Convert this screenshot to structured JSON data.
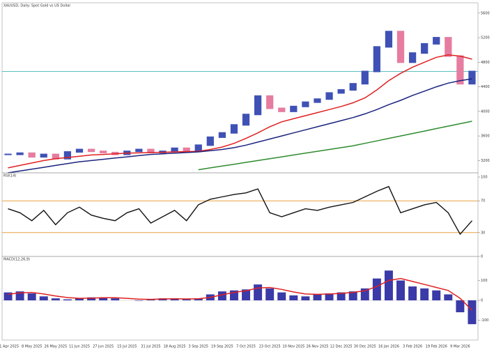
{
  "chart_data": [
    {
      "type": "candlestick",
      "title": "XAUUSD, Daily: Spot Gold vs US Dollar",
      "values": [
        3300,
        3320,
        3260,
        3300,
        3230,
        3340,
        3380,
        3350,
        3330,
        3300,
        3350,
        3380,
        3330,
        3350,
        3400,
        3350,
        3450,
        3580,
        3650,
        3780,
        3950,
        4250,
        4050,
        4000,
        4080,
        4150,
        4200,
        4300,
        4350,
        4450,
        4650,
        5050,
        5300,
        4800,
        4950,
        5100,
        5200,
        4900,
        4450,
        4650
      ],
      "up_color": "#3f51b5",
      "down_color": "#e67ca0",
      "series": [
        {
          "color": "#e02020",
          "values": [
            3080,
            3120,
            3160,
            3200,
            3230,
            3250,
            3270,
            3290,
            3300,
            3310,
            3320,
            3325,
            3330,
            3335,
            3340,
            3345,
            3350,
            3380,
            3420,
            3480,
            3560,
            3650,
            3750,
            3830,
            3880,
            3930,
            3980,
            4030,
            4080,
            4140,
            4220,
            4350,
            4500,
            4620,
            4720,
            4800,
            4880,
            4920,
            4900,
            4850
          ]
        },
        {
          "color": "#1a237e",
          "values": [
            3000,
            3030,
            3060,
            3090,
            3120,
            3150,
            3180,
            3200,
            3220,
            3240,
            3260,
            3280,
            3300,
            3310,
            3320,
            3330,
            3340,
            3360,
            3380,
            3410,
            3450,
            3500,
            3550,
            3600,
            3650,
            3700,
            3750,
            3800,
            3850,
            3900,
            3960,
            4030,
            4110,
            4180,
            4260,
            4330,
            4400,
            4460,
            4500,
            4530
          ]
        },
        {
          "color": "#2e8b2e",
          "values": [
            null,
            null,
            null,
            null,
            null,
            null,
            null,
            null,
            null,
            null,
            null,
            null,
            null,
            null,
            null,
            null,
            3050,
            3080,
            3110,
            3140,
            3170,
            3200,
            3230,
            3260,
            3290,
            3320,
            3350,
            3380,
            3410,
            3440,
            3480,
            3520,
            3560,
            3600,
            3640,
            3680,
            3720,
            3760,
            3800,
            3840
          ]
        }
      ],
      "hlines": [
        {
          "value": 4650,
          "color": "#5bc0c0"
        }
      ],
      "ylim": [
        3000,
        5700
      ],
      "yticks": [
        3200,
        3600,
        4000,
        4400,
        4800,
        5200,
        5600
      ]
    },
    {
      "type": "line",
      "title": "RSI(14)",
      "color": "#111111",
      "values": [
        60,
        55,
        45,
        58,
        40,
        55,
        62,
        52,
        48,
        45,
        55,
        60,
        42,
        50,
        58,
        45,
        65,
        72,
        75,
        78,
        80,
        85,
        55,
        50,
        55,
        60,
        58,
        62,
        65,
        68,
        75,
        82,
        88,
        55,
        60,
        65,
        68,
        55,
        28,
        45
      ],
      "hlines": [
        {
          "value": 70,
          "color": "#e8a040"
        },
        {
          "value": 30,
          "color": "#e8a040"
        }
      ],
      "ylim": [
        0,
        100
      ],
      "yticks": [
        0,
        30,
        70,
        100
      ]
    },
    {
      "type": "bar",
      "title": "MACD(12,26,9)",
      "color": "#3a3aa8",
      "values": [
        40,
        45,
        35,
        20,
        10,
        5,
        10,
        15,
        15,
        10,
        0,
        -2,
        5,
        10,
        8,
        5,
        10,
        30,
        45,
        50,
        55,
        80,
        60,
        40,
        25,
        20,
        30,
        35,
        40,
        45,
        60,
        110,
        150,
        100,
        70,
        60,
        50,
        30,
        -60,
        -120
      ],
      "series": [
        {
          "color": "#e02020",
          "values": [
            30,
            38,
            40,
            32,
            22,
            14,
            10,
            11,
            13,
            13,
            10,
            6,
            5,
            7,
            8,
            7,
            8,
            15,
            28,
            40,
            48,
            62,
            65,
            55,
            42,
            32,
            30,
            32,
            35,
            40,
            48,
            70,
            100,
            110,
            95,
            80,
            65,
            50,
            10,
            -50
          ]
        }
      ],
      "categories": [
        "21 Apr 2025",
        null,
        "8 May 2025",
        null,
        "26 May 2025",
        null,
        "11 Jun 2025",
        null,
        "27 Jun 2025",
        null,
        "15 Jul 2025",
        null,
        "31 Jul 2025",
        null,
        "18 Aug 2025",
        null,
        "3 Sep 2025",
        null,
        "19 Sep 2025",
        null,
        "7 Oct 2025",
        null,
        "23 Oct 2025",
        null,
        "10 Nov 2025",
        null,
        "26 Nov 2025",
        null,
        "12 Dec 2025",
        null,
        "30 Dec 2025",
        null,
        "16 Jan 2026",
        null,
        "3 Feb 2026",
        null,
        "19 Feb 2026",
        null,
        "9 Mar 2026",
        null
      ],
      "ylim": [
        -200,
        200
      ],
      "yticks": [
        -100,
        0,
        100
      ]
    }
  ]
}
